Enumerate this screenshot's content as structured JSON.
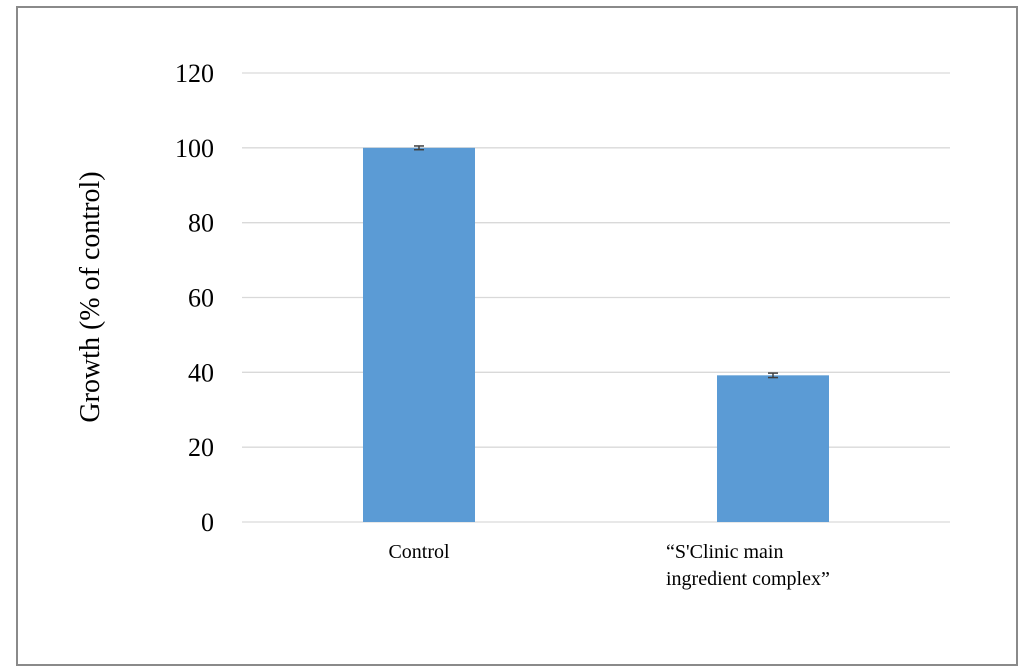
{
  "chart_data": {
    "type": "bar",
    "title": "",
    "xlabel": "",
    "ylabel": "Growth (% of control)",
    "categories": [
      "Control",
      "“S'Clinic main ingredient complex”"
    ],
    "category_label_lines": [
      [
        "Control"
      ],
      [
        "“S'Clinic main",
        "ingredient complex”"
      ]
    ],
    "values": [
      100,
      39.2
    ],
    "error": [
      0.5,
      0.6
    ],
    "ylim": [
      0,
      120
    ],
    "yticks": [
      0,
      20,
      40,
      60,
      80,
      100,
      120
    ],
    "grid": true,
    "legend": "none",
    "bar_color": "#5b9bd5",
    "grid_color": "#d9d9d9",
    "error_color": "#404040"
  }
}
